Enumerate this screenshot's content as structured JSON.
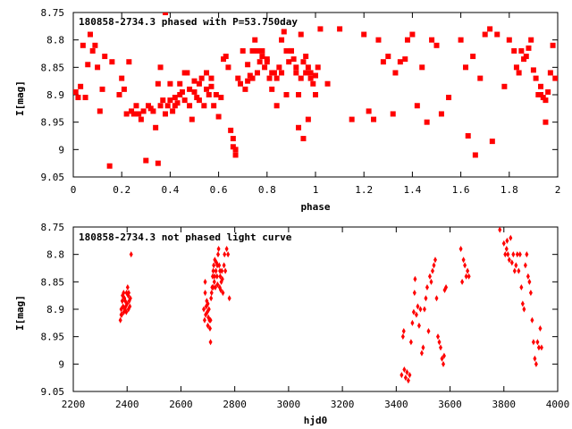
{
  "chart_data": [
    {
      "type": "scatter",
      "title": "180858-2734.3 phased with P=53.750day",
      "xlabel": "phase",
      "ylabel": "I[mag]",
      "xlim": [
        0,
        2
      ],
      "ylim": [
        9.05,
        8.75
      ],
      "y_inverted": true,
      "grid": false,
      "legend": "none",
      "x_ticks": [
        "0",
        "0.2",
        "0.4",
        "0.6",
        "0.8",
        "1",
        "1.2",
        "1.4",
        "1.6",
        "1.8",
        "2"
      ],
      "y_ticks": [
        "8.75",
        "8.8",
        "8.85",
        "8.9",
        "8.95",
        "9",
        "9.05"
      ],
      "color": "#ff0000",
      "marker": "square",
      "points": [
        [
          0.01,
          8.895
        ],
        [
          0.02,
          8.905
        ],
        [
          0.03,
          8.885
        ],
        [
          0.04,
          8.81
        ],
        [
          0.05,
          8.905
        ],
        [
          0.06,
          8.845
        ],
        [
          0.07,
          8.79
        ],
        [
          0.08,
          8.82
        ],
        [
          0.09,
          8.81
        ],
        [
          0.1,
          8.85
        ],
        [
          0.11,
          8.93
        ],
        [
          0.12,
          8.89
        ],
        [
          0.13,
          8.83
        ],
        [
          0.15,
          9.03
        ],
        [
          0.16,
          8.84
        ],
        [
          0.19,
          8.9
        ],
        [
          0.2,
          8.87
        ],
        [
          0.21,
          8.89
        ],
        [
          0.22,
          8.935
        ],
        [
          0.23,
          8.84
        ],
        [
          0.24,
          8.93
        ],
        [
          0.25,
          8.935
        ],
        [
          0.26,
          8.92
        ],
        [
          0.27,
          8.935
        ],
        [
          0.28,
          8.945
        ],
        [
          0.29,
          8.93
        ],
        [
          0.3,
          9.02
        ],
        [
          0.31,
          8.92
        ],
        [
          0.32,
          8.925
        ],
        [
          0.33,
          8.93
        ],
        [
          0.34,
          8.96
        ],
        [
          0.35,
          8.88
        ],
        [
          0.36,
          8.85
        ],
        [
          0.36,
          8.92
        ],
        [
          0.37,
          8.91
        ],
        [
          0.38,
          8.935
        ],
        [
          0.39,
          8.92
        ],
        [
          0.4,
          8.91
        ],
        [
          0.41,
          8.93
        ],
        [
          0.42,
          8.905
        ],
        [
          0.43,
          8.915
        ],
        [
          0.44,
          8.9
        ],
        [
          0.45,
          8.895
        ],
        [
          0.46,
          8.91
        ],
        [
          0.47,
          8.86
        ],
        [
          0.48,
          8.89
        ],
        [
          0.49,
          8.945
        ],
        [
          0.5,
          8.895
        ],
        [
          0.51,
          8.905
        ],
        [
          0.52,
          8.91
        ],
        [
          0.53,
          8.87
        ],
        [
          0.54,
          8.92
        ],
        [
          0.55,
          8.89
        ],
        [
          0.56,
          8.9
        ],
        [
          0.57,
          8.87
        ],
        [
          0.58,
          8.92
        ],
        [
          0.6,
          8.94
        ],
        [
          0.35,
          9.025
        ],
        [
          0.38,
          8.75
        ],
        [
          0.4,
          8.88
        ],
        [
          0.42,
          8.92
        ],
        [
          0.44,
          8.88
        ],
        [
          0.46,
          8.86
        ],
        [
          0.48,
          8.92
        ],
        [
          0.5,
          8.875
        ],
        [
          0.52,
          8.88
        ],
        [
          0.55,
          8.86
        ],
        [
          0.57,
          8.885
        ],
        [
          0.59,
          8.9
        ],
        [
          0.61,
          8.905
        ],
        [
          0.62,
          8.835
        ],
        [
          0.63,
          8.83
        ],
        [
          0.64,
          8.85
        ],
        [
          0.65,
          8.965
        ],
        [
          0.66,
          8.98
        ],
        [
          0.66,
          8.995
        ],
        [
          0.67,
          9.0
        ],
        [
          0.67,
          9.01
        ],
        [
          0.68,
          8.87
        ],
        [
          0.69,
          8.88
        ],
        [
          0.7,
          8.82
        ],
        [
          0.71,
          8.89
        ],
        [
          0.72,
          8.875
        ],
        [
          0.73,
          8.865
        ],
        [
          0.74,
          8.87
        ],
        [
          0.75,
          8.8
        ],
        [
          0.76,
          8.82
        ],
        [
          0.77,
          8.84
        ],
        [
          0.78,
          8.82
        ],
        [
          0.79,
          8.85
        ],
        [
          0.8,
          8.835
        ],
        [
          0.81,
          8.87
        ],
        [
          0.82,
          8.89
        ],
        [
          0.83,
          8.86
        ],
        [
          0.84,
          8.92
        ],
        [
          0.85,
          8.85
        ],
        [
          0.86,
          8.8
        ],
        [
          0.87,
          8.785
        ],
        [
          0.88,
          8.9
        ],
        [
          0.89,
          8.84
        ],
        [
          0.9,
          8.82
        ],
        [
          0.91,
          8.835
        ],
        [
          0.92,
          8.85
        ],
        [
          0.93,
          8.9
        ],
        [
          0.94,
          8.87
        ],
        [
          0.95,
          8.84
        ],
        [
          0.96,
          8.86
        ],
        [
          0.97,
          8.85
        ],
        [
          0.98,
          8.87
        ],
        [
          0.99,
          8.88
        ],
        [
          1.0,
          8.865
        ],
        [
          1.01,
          8.85
        ],
        [
          0.72,
          8.845
        ],
        [
          0.74,
          8.82
        ],
        [
          0.76,
          8.86
        ],
        [
          0.78,
          8.83
        ],
        [
          0.8,
          8.84
        ],
        [
          0.82,
          8.86
        ],
        [
          0.84,
          8.87
        ],
        [
          0.86,
          8.86
        ],
        [
          0.88,
          8.82
        ],
        [
          0.9,
          8.82
        ],
        [
          0.92,
          8.86
        ],
        [
          0.94,
          8.79
        ],
        [
          0.96,
          8.83
        ],
        [
          0.98,
          8.86
        ],
        [
          0.93,
          8.96
        ],
        [
          0.95,
          8.98
        ],
        [
          0.97,
          8.945
        ],
        [
          1.0,
          8.9
        ],
        [
          1.02,
          8.78
        ],
        [
          1.05,
          8.88
        ],
        [
          1.1,
          8.78
        ],
        [
          1.15,
          8.945
        ],
        [
          1.2,
          8.79
        ],
        [
          1.22,
          8.93
        ],
        [
          1.24,
          8.945
        ],
        [
          1.26,
          8.8
        ],
        [
          1.28,
          8.84
        ],
        [
          1.3,
          8.83
        ],
        [
          1.32,
          8.935
        ],
        [
          1.33,
          8.86
        ],
        [
          1.35,
          8.84
        ],
        [
          1.37,
          8.835
        ],
        [
          1.38,
          8.8
        ],
        [
          1.4,
          8.79
        ],
        [
          1.42,
          8.92
        ],
        [
          1.44,
          8.85
        ],
        [
          1.46,
          8.95
        ],
        [
          1.48,
          8.8
        ],
        [
          1.5,
          8.81
        ],
        [
          1.52,
          8.935
        ],
        [
          1.55,
          8.905
        ],
        [
          1.6,
          8.8
        ],
        [
          1.62,
          8.85
        ],
        [
          1.63,
          8.975
        ],
        [
          1.65,
          8.83
        ],
        [
          1.66,
          9.01
        ],
        [
          1.68,
          8.87
        ],
        [
          1.7,
          8.79
        ],
        [
          1.72,
          8.78
        ],
        [
          1.73,
          8.985
        ],
        [
          1.75,
          8.79
        ],
        [
          1.78,
          8.885
        ],
        [
          1.8,
          8.8
        ],
        [
          1.82,
          8.82
        ],
        [
          1.83,
          8.85
        ],
        [
          1.84,
          8.86
        ],
        [
          1.86,
          8.835
        ],
        [
          1.88,
          8.815
        ],
        [
          1.9,
          8.855
        ],
        [
          1.91,
          8.87
        ],
        [
          1.92,
          8.9
        ],
        [
          1.93,
          8.885
        ],
        [
          1.94,
          8.905
        ],
        [
          1.95,
          8.95
        ],
        [
          1.96,
          8.895
        ],
        [
          1.97,
          8.86
        ],
        [
          1.98,
          8.81
        ],
        [
          1.99,
          8.87
        ],
        [
          1.85,
          8.82
        ],
        [
          1.87,
          8.83
        ],
        [
          1.89,
          8.8
        ],
        [
          1.93,
          8.9
        ],
        [
          1.95,
          8.91
        ]
      ]
    },
    {
      "type": "scatter",
      "title": "180858-2734.3 not phased light curve",
      "xlabel": "hjd0",
      "ylabel": "I[mag]",
      "xlim": [
        2200,
        4000
      ],
      "ylim": [
        9.05,
        8.75
      ],
      "y_inverted": true,
      "grid": false,
      "legend": "none",
      "x_ticks": [
        "2200",
        "2400",
        "2600",
        "2800",
        "3000",
        "3200",
        "3400",
        "3600",
        "3800",
        "4000"
      ],
      "y_ticks": [
        "8.75",
        "8.8",
        "8.85",
        "8.9",
        "8.95",
        "9",
        "9.05"
      ],
      "color": "#ff0000",
      "marker": "diamond",
      "points": [
        [
          2375,
          8.92
        ],
        [
          2378,
          8.9
        ],
        [
          2380,
          8.91
        ],
        [
          2382,
          8.885
        ],
        [
          2385,
          8.895
        ],
        [
          2387,
          8.87
        ],
        [
          2390,
          8.88
        ],
        [
          2392,
          8.9
        ],
        [
          2395,
          8.895
        ],
        [
          2397,
          8.905
        ],
        [
          2400,
          8.89
        ],
        [
          2402,
          8.86
        ],
        [
          2404,
          8.875
        ],
        [
          2406,
          8.87
        ],
        [
          2408,
          8.885
        ],
        [
          2410,
          8.895
        ],
        [
          2412,
          8.88
        ],
        [
          2415,
          8.8
        ],
        [
          2378,
          8.91
        ],
        [
          2383,
          8.875
        ],
        [
          2388,
          8.905
        ],
        [
          2393,
          8.885
        ],
        [
          2398,
          8.87
        ],
        [
          2405,
          8.9
        ],
        [
          2685,
          8.9
        ],
        [
          2688,
          8.92
        ],
        [
          2690,
          8.87
        ],
        [
          2692,
          8.91
        ],
        [
          2694,
          8.895
        ],
        [
          2696,
          8.885
        ],
        [
          2698,
          8.905
        ],
        [
          2700,
          8.93
        ],
        [
          2702,
          8.915
        ],
        [
          2704,
          8.9
        ],
        [
          2706,
          8.92
        ],
        [
          2708,
          8.935
        ],
        [
          2710,
          8.96
        ],
        [
          2712,
          8.88
        ],
        [
          2714,
          8.87
        ],
        [
          2716,
          8.86
        ],
        [
          2718,
          8.84
        ],
        [
          2720,
          8.83
        ],
        [
          2722,
          8.82
        ],
        [
          2724,
          8.85
        ],
        [
          2726,
          8.81
        ],
        [
          2728,
          8.86
        ],
        [
          2730,
          8.83
        ],
        [
          2732,
          8.815
        ],
        [
          2734,
          8.84
        ],
        [
          2736,
          8.855
        ],
        [
          2738,
          8.8
        ],
        [
          2740,
          8.79
        ],
        [
          2742,
          8.82
        ],
        [
          2744,
          8.86
        ],
        [
          2746,
          8.84
        ],
        [
          2748,
          8.865
        ],
        [
          2750,
          8.85
        ],
        [
          2752,
          8.83
        ],
        [
          2754,
          8.845
        ],
        [
          2756,
          8.87
        ],
        [
          2760,
          8.82
        ],
        [
          2762,
          8.8
        ],
        [
          2765,
          8.83
        ],
        [
          2770,
          8.79
        ],
        [
          2775,
          8.8
        ],
        [
          2780,
          8.88
        ],
        [
          2690,
          8.85
        ],
        [
          2700,
          8.89
        ],
        [
          2710,
          8.92
        ],
        [
          2720,
          8.86
        ],
        [
          2725,
          8.84
        ],
        [
          2735,
          8.82
        ],
        [
          2745,
          8.83
        ],
        [
          3420,
          9.02
        ],
        [
          3425,
          8.95
        ],
        [
          3428,
          8.94
        ],
        [
          3430,
          9.01
        ],
        [
          3435,
          9.025
        ],
        [
          3440,
          9.015
        ],
        [
          3445,
          9.03
        ],
        [
          3450,
          9.02
        ],
        [
          3455,
          8.96
        ],
        [
          3460,
          8.925
        ],
        [
          3465,
          8.905
        ],
        [
          3468,
          8.87
        ],
        [
          3470,
          8.845
        ],
        [
          3475,
          8.91
        ],
        [
          3480,
          8.895
        ],
        [
          3485,
          8.93
        ],
        [
          3490,
          8.9
        ],
        [
          3495,
          8.98
        ],
        [
          3500,
          8.97
        ],
        [
          3505,
          8.9
        ],
        [
          3510,
          8.88
        ],
        [
          3515,
          8.86
        ],
        [
          3520,
          8.94
        ],
        [
          3525,
          8.84
        ],
        [
          3530,
          8.85
        ],
        [
          3535,
          8.83
        ],
        [
          3540,
          8.82
        ],
        [
          3545,
          8.81
        ],
        [
          3550,
          8.88
        ],
        [
          3555,
          8.95
        ],
        [
          3560,
          8.96
        ],
        [
          3565,
          8.97
        ],
        [
          3570,
          8.99
        ],
        [
          3575,
          9.0
        ],
        [
          3578,
          8.985
        ],
        [
          3580,
          8.865
        ],
        [
          3585,
          8.86
        ],
        [
          3640,
          8.79
        ],
        [
          3645,
          8.85
        ],
        [
          3650,
          8.81
        ],
        [
          3655,
          8.82
        ],
        [
          3660,
          8.84
        ],
        [
          3665,
          8.83
        ],
        [
          3670,
          8.84
        ],
        [
          3785,
          8.755
        ],
        [
          3800,
          8.78
        ],
        [
          3805,
          8.8
        ],
        [
          3810,
          8.79
        ],
        [
          3812,
          8.775
        ],
        [
          3815,
          8.8
        ],
        [
          3820,
          8.81
        ],
        [
          3825,
          8.77
        ],
        [
          3830,
          8.815
        ],
        [
          3835,
          8.8
        ],
        [
          3840,
          8.83
        ],
        [
          3845,
          8.82
        ],
        [
          3850,
          8.8
        ],
        [
          3855,
          8.83
        ],
        [
          3860,
          8.8
        ],
        [
          3865,
          8.86
        ],
        [
          3870,
          8.89
        ],
        [
          3875,
          8.9
        ],
        [
          3880,
          8.82
        ],
        [
          3885,
          8.8
        ],
        [
          3890,
          8.84
        ],
        [
          3895,
          8.85
        ],
        [
          3900,
          8.87
        ],
        [
          3905,
          8.92
        ],
        [
          3910,
          8.96
        ],
        [
          3915,
          8.99
        ],
        [
          3920,
          9.0
        ],
        [
          3925,
          8.96
        ],
        [
          3930,
          8.97
        ],
        [
          3935,
          8.935
        ],
        [
          3940,
          8.97
        ]
      ]
    }
  ]
}
